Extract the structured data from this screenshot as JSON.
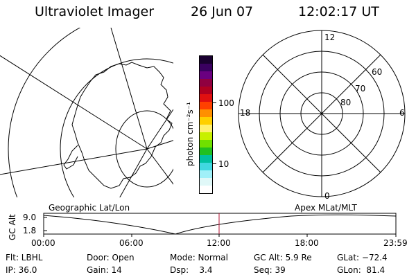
{
  "header": {
    "title": "Ultraviolet Imager",
    "date": "26 Jun 07",
    "time": "12:02:17 UT"
  },
  "colorbar": {
    "label": "photon cm⁻²s⁻¹",
    "ticks": [
      "100",
      "10"
    ],
    "colors": [
      "#1a0030",
      "#3a0060",
      "#6a0080",
      "#900040",
      "#b00020",
      "#e01010",
      "#ff4000",
      "#ff9000",
      "#ffd000",
      "#fff070",
      "#c8f000",
      "#70e000",
      "#20c020",
      "#00c0a0",
      "#40d8e0",
      "#a0f0f8",
      "#e0f8f8",
      "#ffffff"
    ]
  },
  "polar_plot": {
    "mlt_labels": [
      "12",
      "18",
      "6",
      "0"
    ],
    "mlat_labels": [
      "60",
      "70",
      "80"
    ]
  },
  "timeline": {
    "left_label": "Geographic Lat/Lon",
    "right_label": "Apex MLat/MLT",
    "axis_label": "GC Alt",
    "y_ticks": [
      "9.0",
      "1.8"
    ],
    "x_ticks": [
      "00:00",
      "06:00",
      "12:00",
      "18:00",
      "23:59"
    ]
  },
  "status": {
    "flt": "Flt: LBHL",
    "ip": "IP: 36.0",
    "door": "Door: Open",
    "gain": "Gain: 14",
    "mode": "Mode: Normal",
    "dsp": "Dsp:    3.4",
    "gc_alt": "GC Alt: 5.9 Re",
    "seq": "Seq: 39",
    "glat": "GLat: −72.4",
    "glon": "GLon:  81.4"
  }
}
